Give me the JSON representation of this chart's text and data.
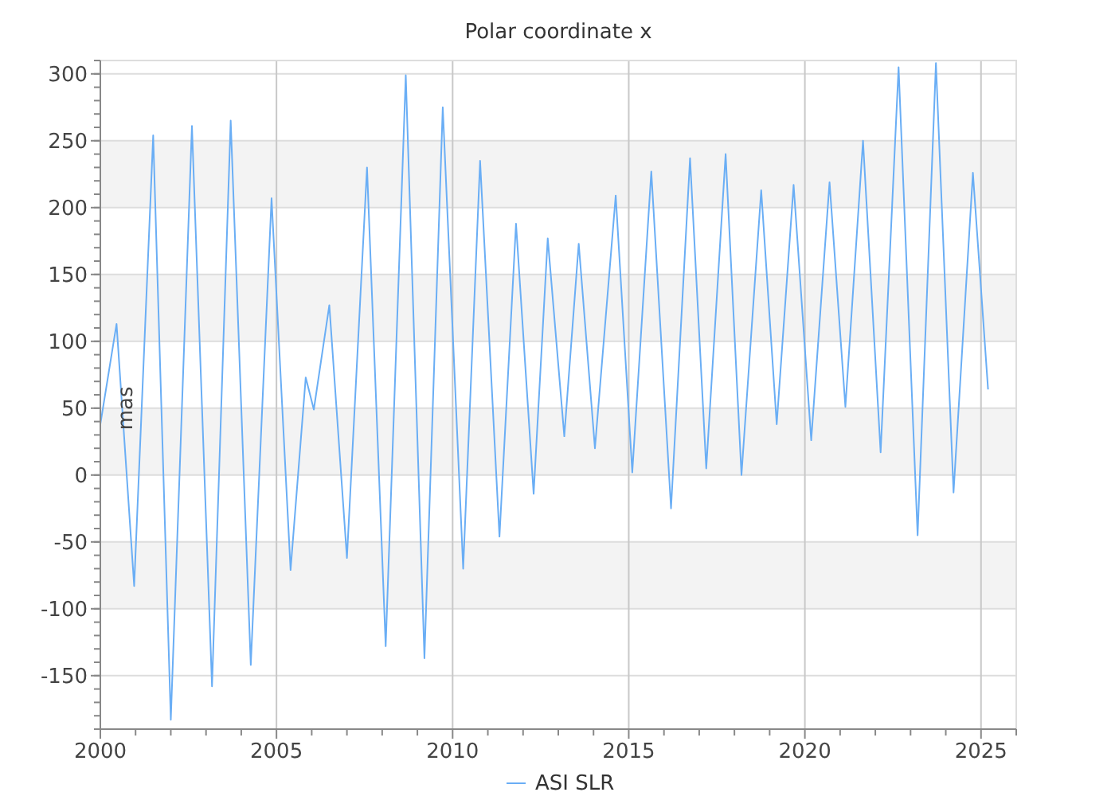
{
  "chart_data": {
    "type": "line",
    "title": "Polar coordinate x",
    "ylabel": "mas",
    "xlim": [
      2000,
      2026
    ],
    "ylim": [
      -190,
      310
    ],
    "xticks": [
      2000,
      {
        "value": 2001,
        "label": null
      },
      {
        "value": 2002,
        "label": null
      },
      {
        "value": 2003,
        "label": null
      },
      {
        "value": 2004,
        "label": null
      },
      2005,
      {
        "value": 2006,
        "label": null
      },
      {
        "value": 2007,
        "label": null
      },
      {
        "value": 2008,
        "label": null
      },
      {
        "value": 2009,
        "label": null
      },
      2010,
      {
        "value": 2011,
        "label": null
      },
      {
        "value": 2012,
        "label": null
      },
      {
        "value": 2013,
        "label": null
      },
      {
        "value": 2014,
        "label": null
      },
      2015,
      {
        "value": 2016,
        "label": null
      },
      {
        "value": 2017,
        "label": null
      },
      {
        "value": 2018,
        "label": null
      },
      {
        "value": 2019,
        "label": null
      },
      2020,
      {
        "value": 2021,
        "label": null
      },
      {
        "value": 2022,
        "label": null
      },
      {
        "value": 2023,
        "label": null
      },
      {
        "value": 2024,
        "label": null
      },
      2025,
      {
        "value": 2026,
        "label": null
      }
    ],
    "yticks": [
      -150,
      -100,
      -50,
      0,
      50,
      100,
      150,
      200,
      250,
      300
    ],
    "grid": true,
    "legend": "bottom",
    "marker": "none",
    "line_style": "solid",
    "series": [
      {
        "name": "ASI SLR",
        "color": "#6aaef5",
        "x": [
          2000.0,
          2000.46,
          2000.96,
          2001.5,
          2002.0,
          2002.6,
          2003.17,
          2003.7,
          2004.27,
          2004.86,
          2005.4,
          2005.83,
          2006.06,
          2006.5,
          2007.0,
          2007.57,
          2008.1,
          2008.67,
          2009.2,
          2009.72,
          2010.3,
          2010.78,
          2011.33,
          2011.8,
          2012.3,
          2012.7,
          2013.17,
          2013.58,
          2014.04,
          2014.63,
          2015.1,
          2015.64,
          2016.2,
          2016.74,
          2017.2,
          2017.75,
          2018.2,
          2018.76,
          2019.2,
          2019.68,
          2020.18,
          2020.7,
          2021.15,
          2021.65,
          2022.15,
          2022.66,
          2023.2,
          2023.72,
          2024.22,
          2024.77,
          2025.2
        ],
        "values": [
          38,
          113,
          -83,
          254,
          -183,
          261,
          -158,
          265,
          -142,
          207,
          -71,
          73,
          49,
          127,
          -62,
          230,
          -128,
          299,
          -137,
          275,
          -70,
          235,
          -46,
          188,
          -14,
          177,
          29,
          173,
          20,
          209,
          2,
          227,
          -25,
          237,
          5,
          240,
          0,
          213,
          38,
          217,
          26,
          219,
          51,
          250,
          17,
          305,
          -45,
          308,
          -13,
          226,
          64
        ]
      }
    ]
  }
}
